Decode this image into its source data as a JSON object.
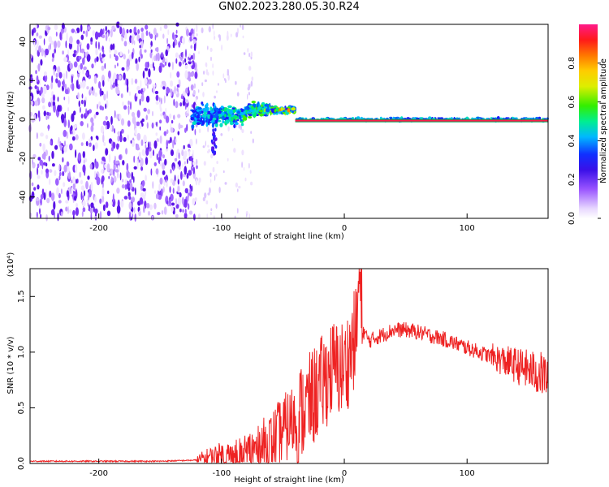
{
  "title": "GN02.2023.280.05.30.R24",
  "chart_data": [
    {
      "type": "heatmap",
      "xlabel": "Height of straight line (km)",
      "ylabel": "Frequency (Hz)",
      "xlim": [
        -256,
        166
      ],
      "ylim": [
        -51,
        49
      ],
      "xticks": [
        -200,
        -100,
        0,
        100
      ],
      "yticks": [
        -40,
        -20,
        0,
        20,
        40
      ],
      "grid": false,
      "colorbar": {
        "label": "Normalized spectral amplitude",
        "range": [
          0,
          1
        ],
        "ticks": [
          0.0,
          0.2,
          0.4,
          0.6,
          0.8
        ],
        "tick_labels": [
          "0.0",
          "0.2",
          "0.4",
          "0.6",
          "0.8"
        ],
        "colormap": "rainbow (white-lavender-violet-blue-cyan-green-yellow-orange-red-magenta)"
      },
      "features": {
        "broadband_noise_region_x": [
          -256,
          -124
        ],
        "dominant_frequency_hz": 0,
        "centerline_color": "#00a050",
        "max_amplitude_line_color": "#ff1a4a"
      }
    },
    {
      "type": "line",
      "xlabel": "Height of straight line (km)",
      "ylabel": "SNR (10 * v/v)",
      "y_multiplier": "(x10⁴)",
      "xlim": [
        -256,
        166
      ],
      "ylim": [
        0,
        1.75
      ],
      "xticks": [
        -200,
        -100,
        0,
        100
      ],
      "yticks": [
        0.0,
        0.5,
        1.0,
        1.5
      ],
      "ytick_labels": [
        "0.0",
        "0.5",
        "1.0",
        "1.5"
      ],
      "grid": false,
      "series": [
        {
          "color": "#ee2222",
          "x": [
            -256,
            -200,
            -150,
            -120,
            -110,
            -100,
            -90,
            -80,
            -70,
            -60,
            -50,
            -40,
            -30,
            -20,
            -10,
            0,
            5,
            10,
            12,
            15,
            20,
            30,
            40,
            50,
            60,
            70,
            80,
            90,
            100,
            110,
            120,
            130,
            140,
            150,
            160,
            166
          ],
          "values": [
            0.02,
            0.02,
            0.02,
            0.03,
            0.06,
            0.07,
            0.06,
            0.09,
            0.13,
            0.2,
            0.3,
            0.4,
            0.52,
            0.68,
            0.85,
            0.85,
            1.0,
            1.18,
            1.7,
            1.2,
            1.1,
            1.15,
            1.2,
            1.2,
            1.18,
            1.15,
            1.12,
            1.08,
            1.04,
            1.0,
            0.96,
            0.92,
            0.88,
            0.84,
            0.8,
            0.78
          ]
        }
      ]
    }
  ]
}
